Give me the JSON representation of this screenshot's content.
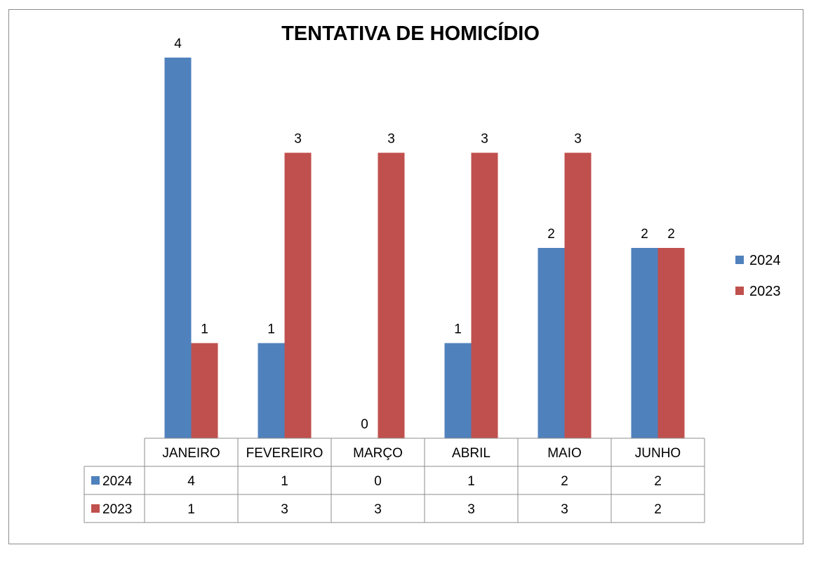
{
  "chart_data": {
    "type": "bar",
    "title": "TENTATIVA DE HOMICÍDIO",
    "categories": [
      "JANEIRO",
      "FEVEREIRO",
      "MARÇO",
      "ABRIL",
      "MAIO",
      "JUNHO"
    ],
    "series": [
      {
        "name": "2024",
        "values": [
          4,
          1,
          0,
          1,
          2,
          2
        ],
        "color": "#4f81bd"
      },
      {
        "name": "2023",
        "values": [
          1,
          3,
          3,
          3,
          3,
          2
        ],
        "color": "#c0504d"
      }
    ],
    "ylim": [
      0,
      4
    ],
    "grid": false,
    "legend": "right",
    "data_table": true
  }
}
